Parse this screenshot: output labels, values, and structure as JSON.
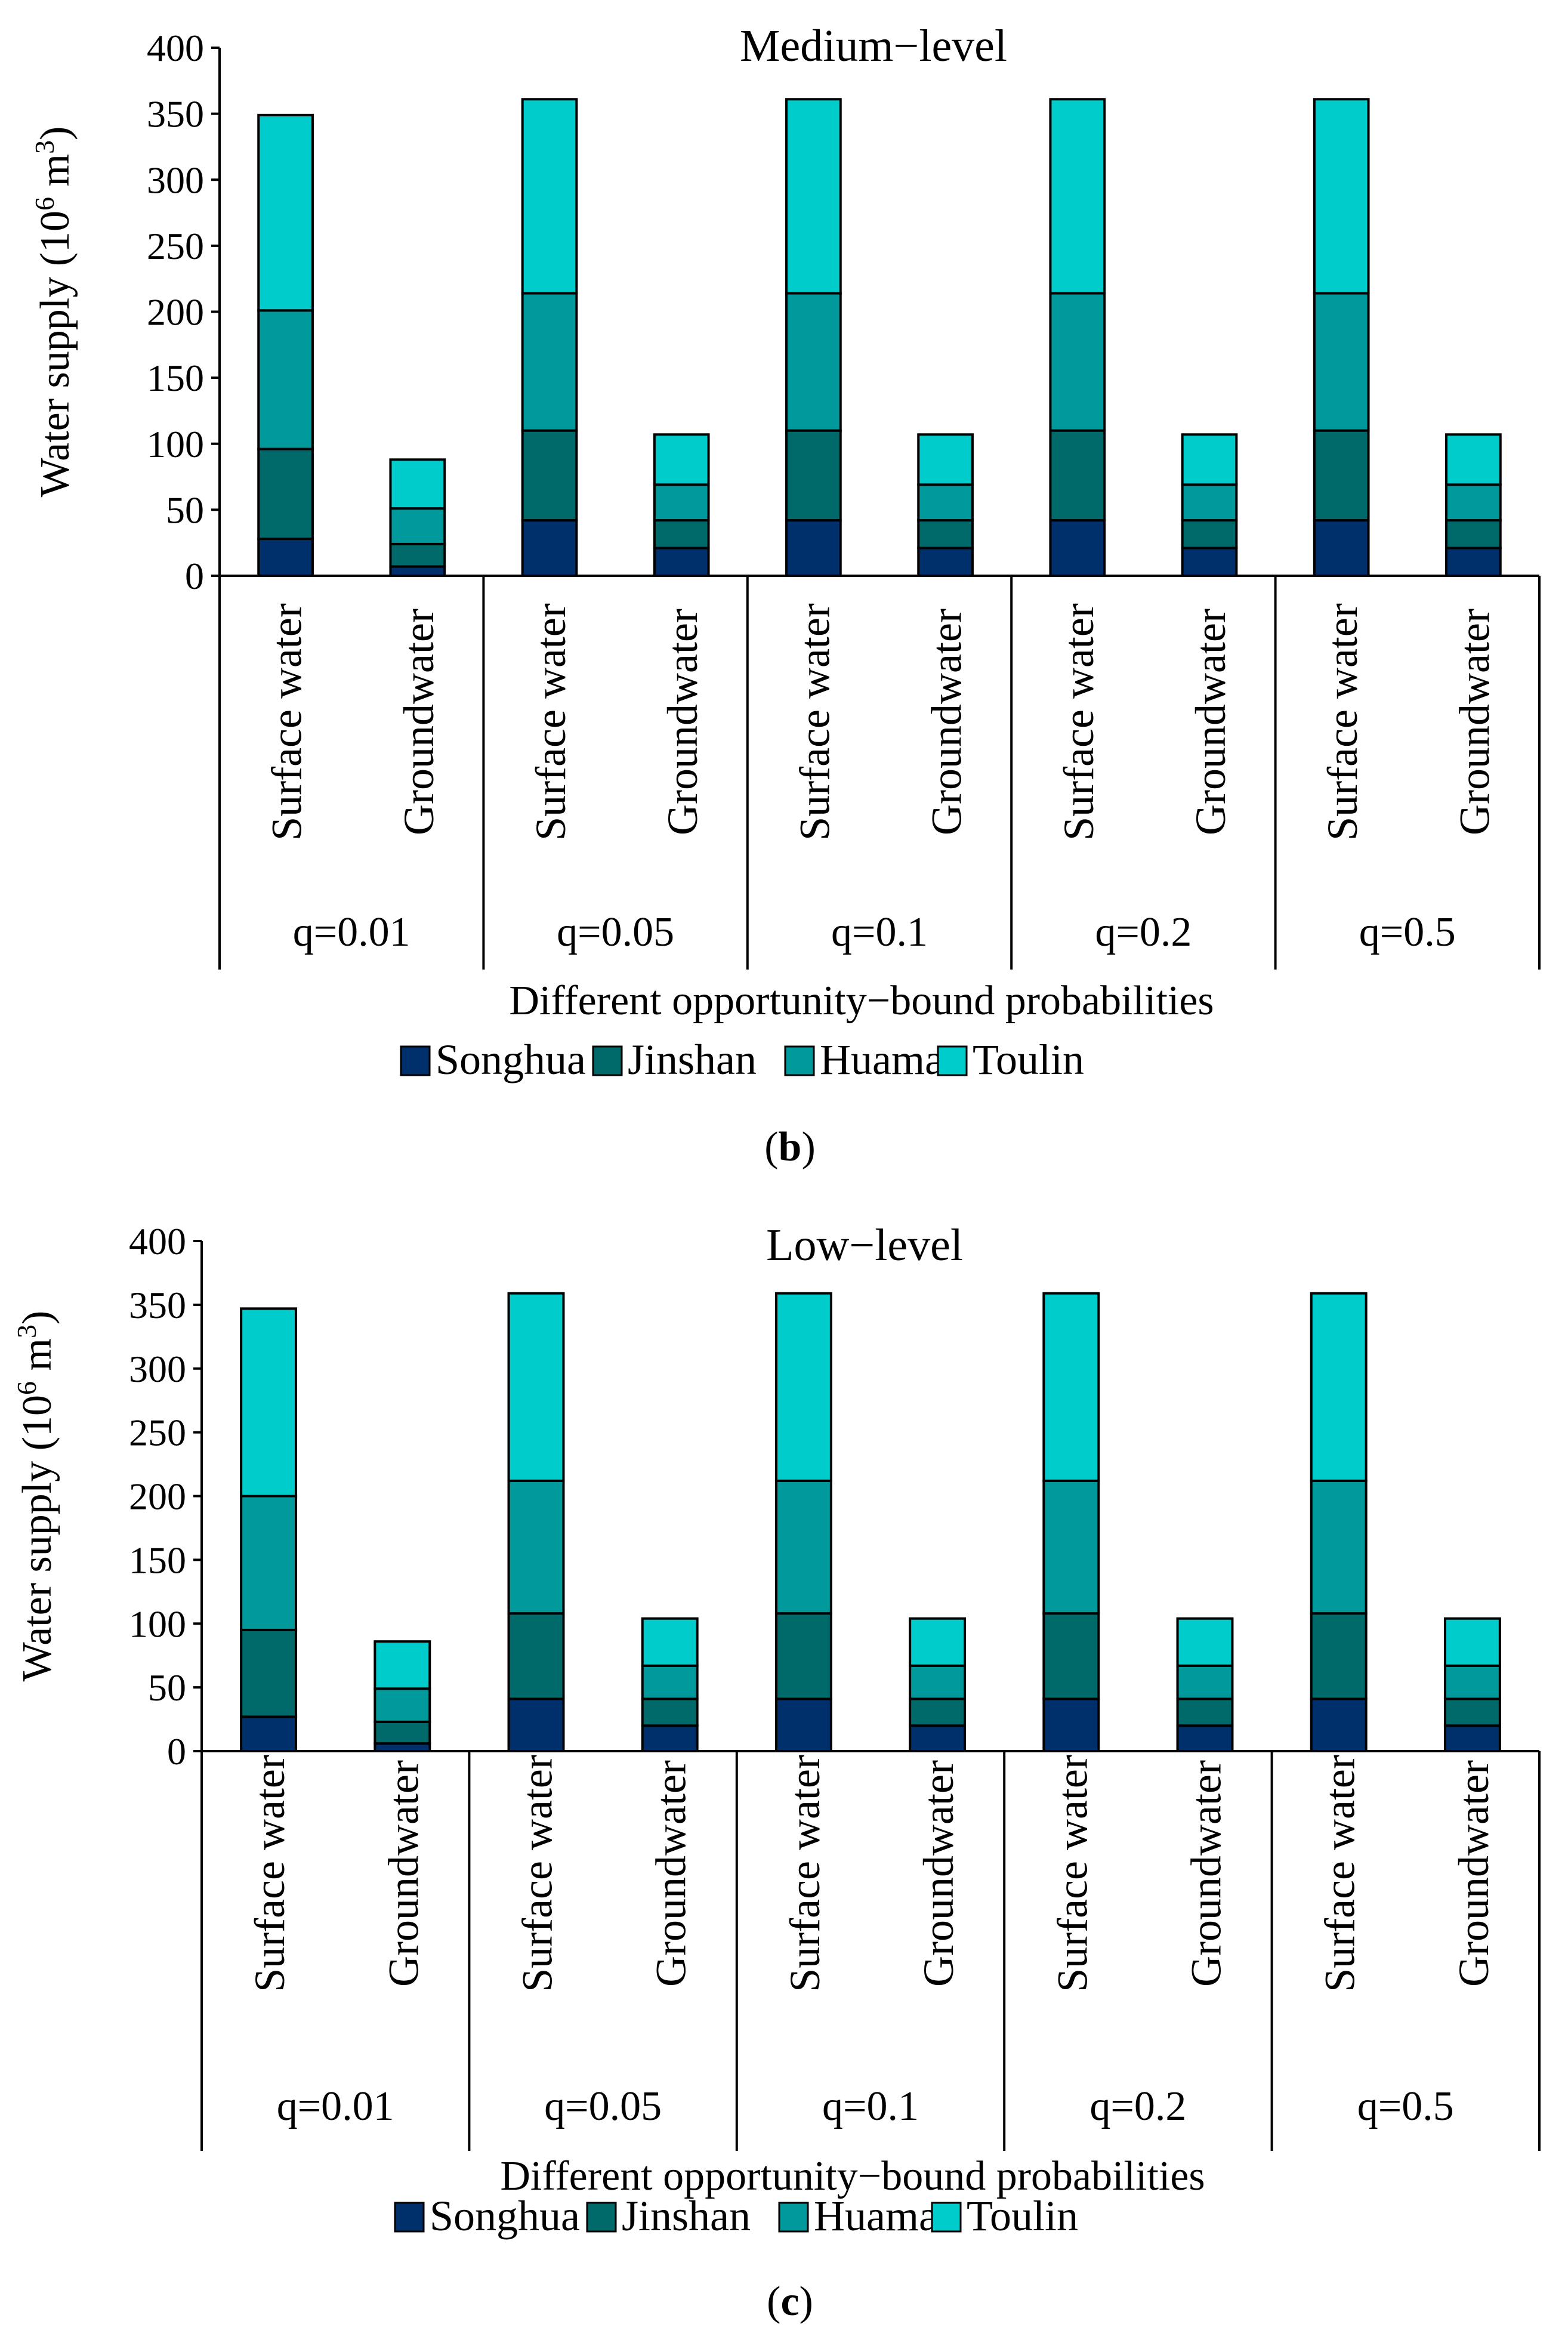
{
  "chart_data": [
    {
      "type": "bar",
      "stacked": true,
      "panel_label": "b",
      "title": "Medium−level",
      "ylabel": "Water supply (10",
      "ylabel_sup": "6",
      "ylabel_unit": " m",
      "ylabel_unit_sup": "3",
      "ylabel_close": ")",
      "xlabel": "Different opportunity−bound probabilities",
      "ylim": [
        0,
        400
      ],
      "yticks": [
        0,
        50,
        100,
        150,
        200,
        250,
        300,
        350,
        400
      ],
      "groups": [
        "q=0.01",
        "q=0.05",
        "q=0.1",
        "q=0.2",
        "q=0.5"
      ],
      "categories": [
        "Surface water",
        "Groundwater"
      ],
      "series": [
        {
          "name": "Songhua",
          "color": "#00306b",
          "values": [
            [
              28,
              7
            ],
            [
              42,
              21
            ],
            [
              42,
              21
            ],
            [
              42,
              21
            ],
            [
              42,
              21
            ]
          ]
        },
        {
          "name": "Jinshan",
          "color": "#006a6a",
          "values": [
            [
              68,
              17
            ],
            [
              68,
              21
            ],
            [
              68,
              21
            ],
            [
              68,
              21
            ],
            [
              68,
              21
            ]
          ]
        },
        {
          "name": "Huama",
          "color": "#00999c",
          "values": [
            [
              105,
              27
            ],
            [
              104,
              27
            ],
            [
              104,
              27
            ],
            [
              104,
              27
            ],
            [
              104,
              27
            ]
          ]
        },
        {
          "name": "Toulin",
          "color": "#00cccc",
          "values": [
            [
              148,
              37
            ],
            [
              147,
              38
            ],
            [
              147,
              38
            ],
            [
              147,
              38
            ],
            [
              147,
              38
            ]
          ]
        }
      ]
    },
    {
      "type": "bar",
      "stacked": true,
      "panel_label": "c",
      "title": "Low−level",
      "ylabel": "Water supply (10",
      "ylabel_sup": "6",
      "ylabel_unit": " m",
      "ylabel_unit_sup": "3",
      "ylabel_close": ")",
      "xlabel": "Different opportunity−bound probabilities",
      "ylim": [
        0,
        400
      ],
      "yticks": [
        0,
        50,
        100,
        150,
        200,
        250,
        300,
        350,
        400
      ],
      "groups": [
        "q=0.01",
        "q=0.05",
        "q=0.1",
        "q=0.2",
        "q=0.5"
      ],
      "categories": [
        "Surface water",
        "Groundwater"
      ],
      "series": [
        {
          "name": "Songhua",
          "color": "#00306b",
          "values": [
            [
              27,
              6
            ],
            [
              41,
              20
            ],
            [
              41,
              20
            ],
            [
              41,
              20
            ],
            [
              41,
              20
            ]
          ]
        },
        {
          "name": "Jinshan",
          "color": "#006a6a",
          "values": [
            [
              68,
              17
            ],
            [
              67,
              21
            ],
            [
              67,
              21
            ],
            [
              67,
              21
            ],
            [
              67,
              21
            ]
          ]
        },
        {
          "name": "Huama",
          "color": "#00999c",
          "values": [
            [
              105,
              26
            ],
            [
              104,
              26
            ],
            [
              104,
              26
            ],
            [
              104,
              26
            ],
            [
              104,
              26
            ]
          ]
        },
        {
          "name": "Toulin",
          "color": "#00cccc",
          "values": [
            [
              147,
              37
            ],
            [
              147,
              37
            ],
            [
              147,
              37
            ],
            [
              147,
              37
            ],
            [
              147,
              37
            ]
          ]
        }
      ]
    }
  ]
}
